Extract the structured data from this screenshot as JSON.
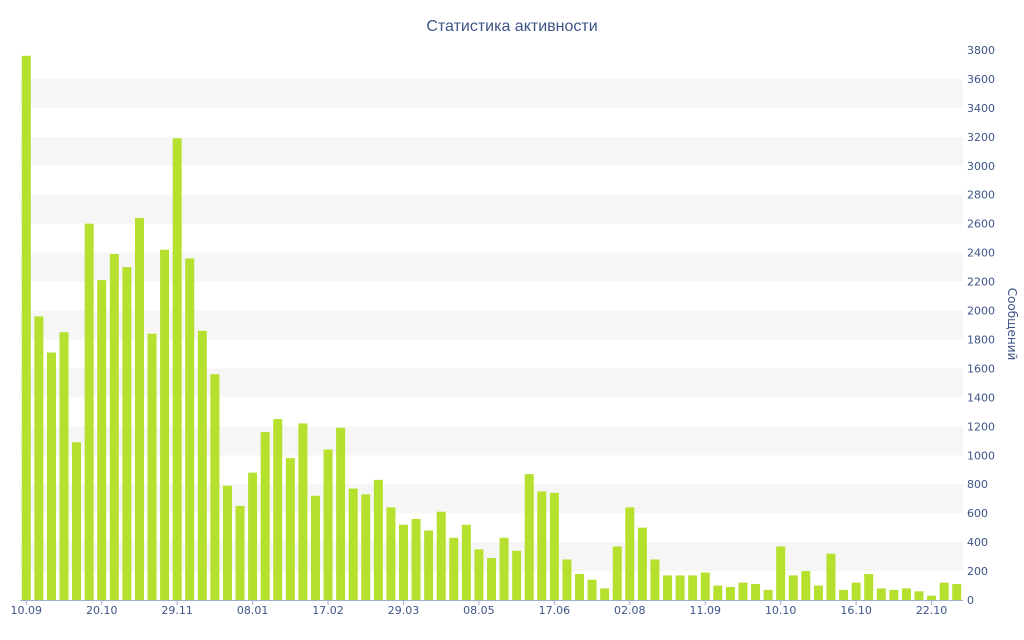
{
  "chart_data": {
    "type": "bar",
    "title": "Статистика активности",
    "xlabel": "",
    "ylabel": "Сообщений",
    "y_axis_side": "right",
    "ylim": [
      0,
      3800
    ],
    "y_ticks": [
      0,
      200,
      400,
      600,
      800,
      1000,
      1200,
      1400,
      1600,
      1800,
      2000,
      2200,
      2400,
      2600,
      2800,
      3000,
      3200,
      3400,
      3600,
      3800
    ],
    "grid": "alternating-bands",
    "legend": "none",
    "colors": {
      "bar": "#b5e02e",
      "band": "#f6f6f6",
      "text": "#3e5487",
      "axis_line": "#a0b0cc"
    },
    "categories": [
      "10.09",
      "",
      "",
      "",
      "",
      "",
      "20.10",
      "",
      "",
      "",
      "",
      "",
      "29.11",
      "",
      "",
      "",
      "",
      "",
      "08.01",
      "",
      "",
      "",
      "",
      "",
      "17.02",
      "",
      "",
      "",
      "",
      "",
      "29.03",
      "",
      "",
      "",
      "",
      "",
      "08.05",
      "",
      "",
      "",
      "",
      "",
      "17.06",
      "",
      "",
      "",
      "",
      "",
      "02.08",
      "",
      "",
      "",
      "",
      "",
      "11.09",
      "",
      "",
      "",
      "",
      "",
      "10.10",
      "",
      "",
      "",
      "",
      "",
      "16.10",
      "",
      "",
      "",
      "",
      "",
      "22.10",
      "",
      ""
    ],
    "values": [
      3760,
      1960,
      1710,
      1850,
      1090,
      2600,
      2210,
      2390,
      2300,
      2640,
      1840,
      2420,
      3190,
      2360,
      1860,
      1560,
      790,
      650,
      880,
      1160,
      1250,
      980,
      1220,
      720,
      1040,
      1190,
      770,
      730,
      830,
      640,
      520,
      560,
      480,
      610,
      430,
      520,
      350,
      290,
      430,
      340,
      870,
      750,
      740,
      280,
      180,
      140,
      80,
      370,
      640,
      500,
      280,
      170,
      170,
      170,
      190,
      100,
      90,
      120,
      110,
      70,
      370,
      170,
      200,
      100,
      320,
      70,
      120,
      180,
      80,
      70,
      80,
      60,
      30,
      120,
      110
    ]
  }
}
